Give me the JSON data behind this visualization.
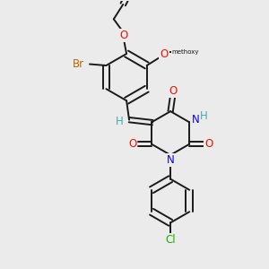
{
  "bg_color": "#ebebeb",
  "bond_color": "#1a1a1a",
  "bond_width": 1.4,
  "atom_colors": {
    "O": "#ee1100",
    "N": "#1100ee",
    "Br": "#bb6600",
    "Cl": "#22aa00",
    "H": "#44aaaa",
    "C": "#1a1a1a"
  },
  "font_size_atom": 8.5,
  "font_size_sub": 6.5
}
